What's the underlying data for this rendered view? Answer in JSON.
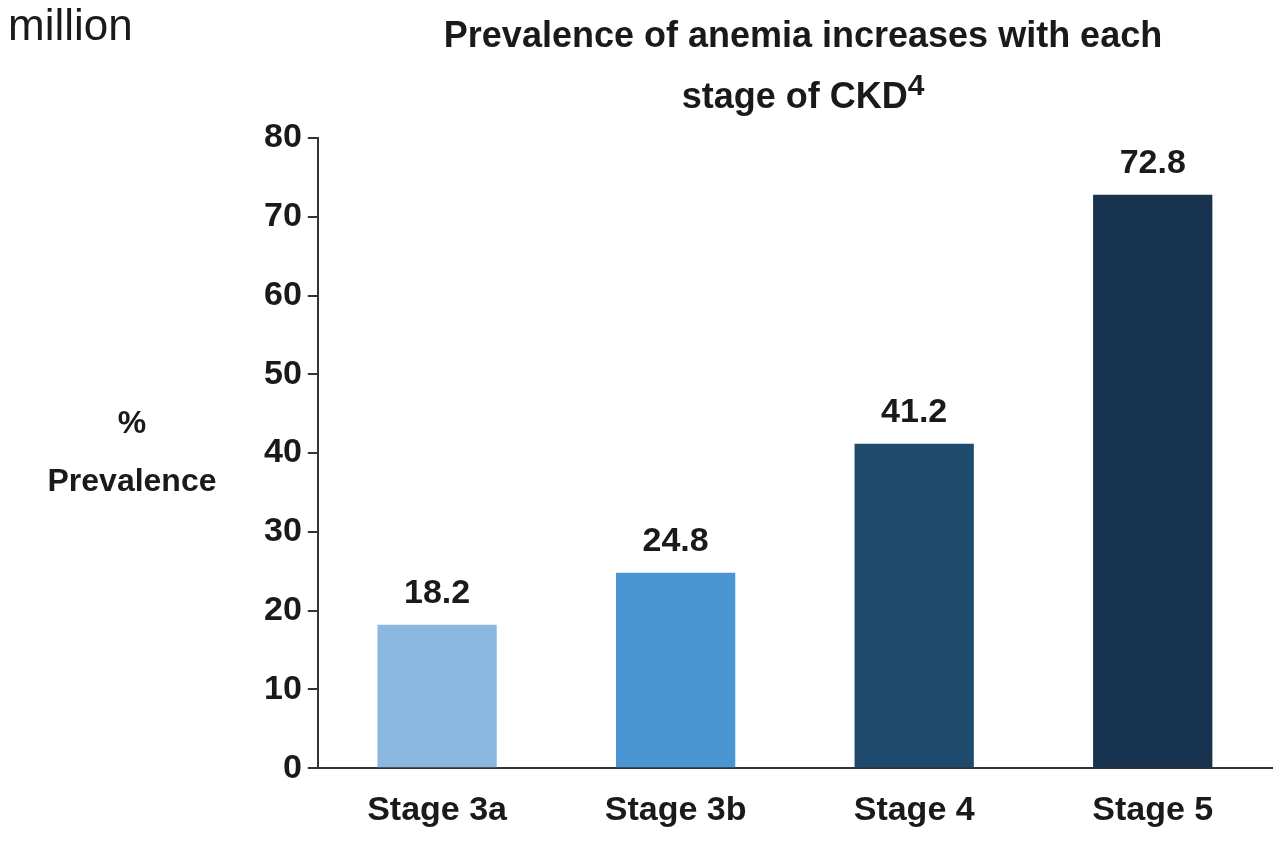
{
  "chart_data": {
    "type": "bar",
    "title": "Prevalence of anemia increases with each stage of CKD$^{4}$",
    "ylabel": "% Prevalence",
    "annotations": [
      "million"
    ],
    "categories": [
      "Stage 3a",
      "Stage 3b",
      "Stage 4",
      "Stage 5"
    ],
    "values": [
      18.2,
      24.8,
      41.2,
      72.8
    ],
    "colors": [
      "#8ab8e0",
      "#4a96d4",
      "#1d4a6d",
      "#17334f"
    ],
    "ylim": [
      0,
      80
    ],
    "yticks": [
      0,
      10,
      20,
      30,
      40,
      50,
      60,
      70,
      80
    ],
    "data_labels": true,
    "grid": false,
    "legend": false
  }
}
